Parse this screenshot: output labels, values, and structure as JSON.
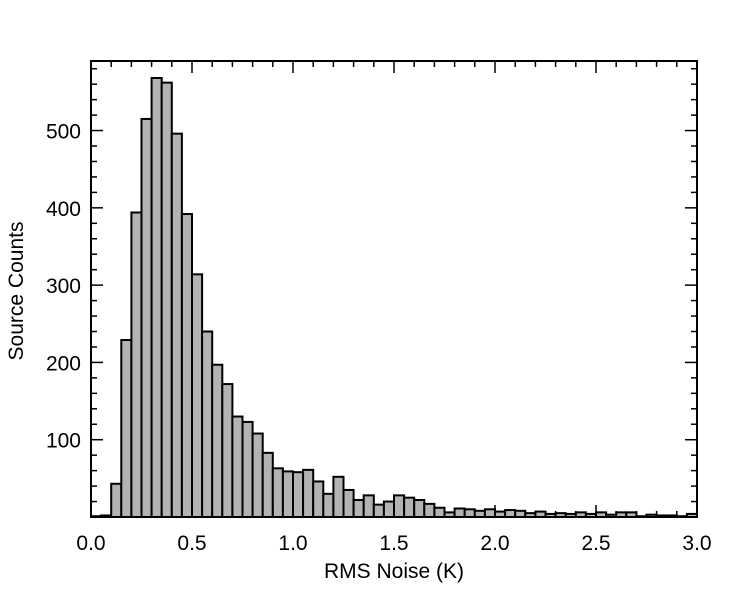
{
  "chart_data": {
    "type": "bar",
    "title": "",
    "xlabel": "RMS Noise (K)",
    "ylabel": "Source Counts",
    "xlim": [
      0.0,
      3.0
    ],
    "ylim": [
      0,
      590
    ],
    "xticks": [
      "0.0",
      "0.5",
      "1.0",
      "1.5",
      "2.0",
      "2.5",
      "3.0"
    ],
    "yticks": [
      "100",
      "200",
      "300",
      "400",
      "500"
    ],
    "bin_width": 0.05,
    "bin_starts": [
      0.0,
      0.05,
      0.1,
      0.15,
      0.2,
      0.25,
      0.3,
      0.35,
      0.4,
      0.45,
      0.5,
      0.55,
      0.6,
      0.65,
      0.7,
      0.75,
      0.8,
      0.85,
      0.9,
      0.95,
      1.0,
      1.05,
      1.1,
      1.15,
      1.2,
      1.25,
      1.3,
      1.35,
      1.4,
      1.45,
      1.5,
      1.55,
      1.6,
      1.65,
      1.7,
      1.75,
      1.8,
      1.85,
      1.9,
      1.95,
      2.0,
      2.05,
      2.1,
      2.15,
      2.2,
      2.25,
      2.3,
      2.35,
      2.4,
      2.45,
      2.5,
      2.55,
      2.6,
      2.65,
      2.7,
      2.75,
      2.8,
      2.85,
      2.9,
      2.95
    ],
    "values": [
      1,
      2,
      43,
      229,
      394,
      515,
      568,
      562,
      496,
      392,
      314,
      240,
      197,
      172,
      130,
      123,
      108,
      83,
      63,
      59,
      58,
      61,
      46,
      30,
      52,
      35,
      22,
      28,
      16,
      20,
      28,
      25,
      22,
      17,
      12,
      6,
      11,
      10,
      8,
      10,
      7,
      9,
      8,
      5,
      7,
      4,
      5,
      4,
      6,
      4,
      6,
      3,
      6,
      6,
      1,
      3,
      2,
      2,
      1,
      4
    ],
    "grid": false,
    "legend": "none"
  }
}
